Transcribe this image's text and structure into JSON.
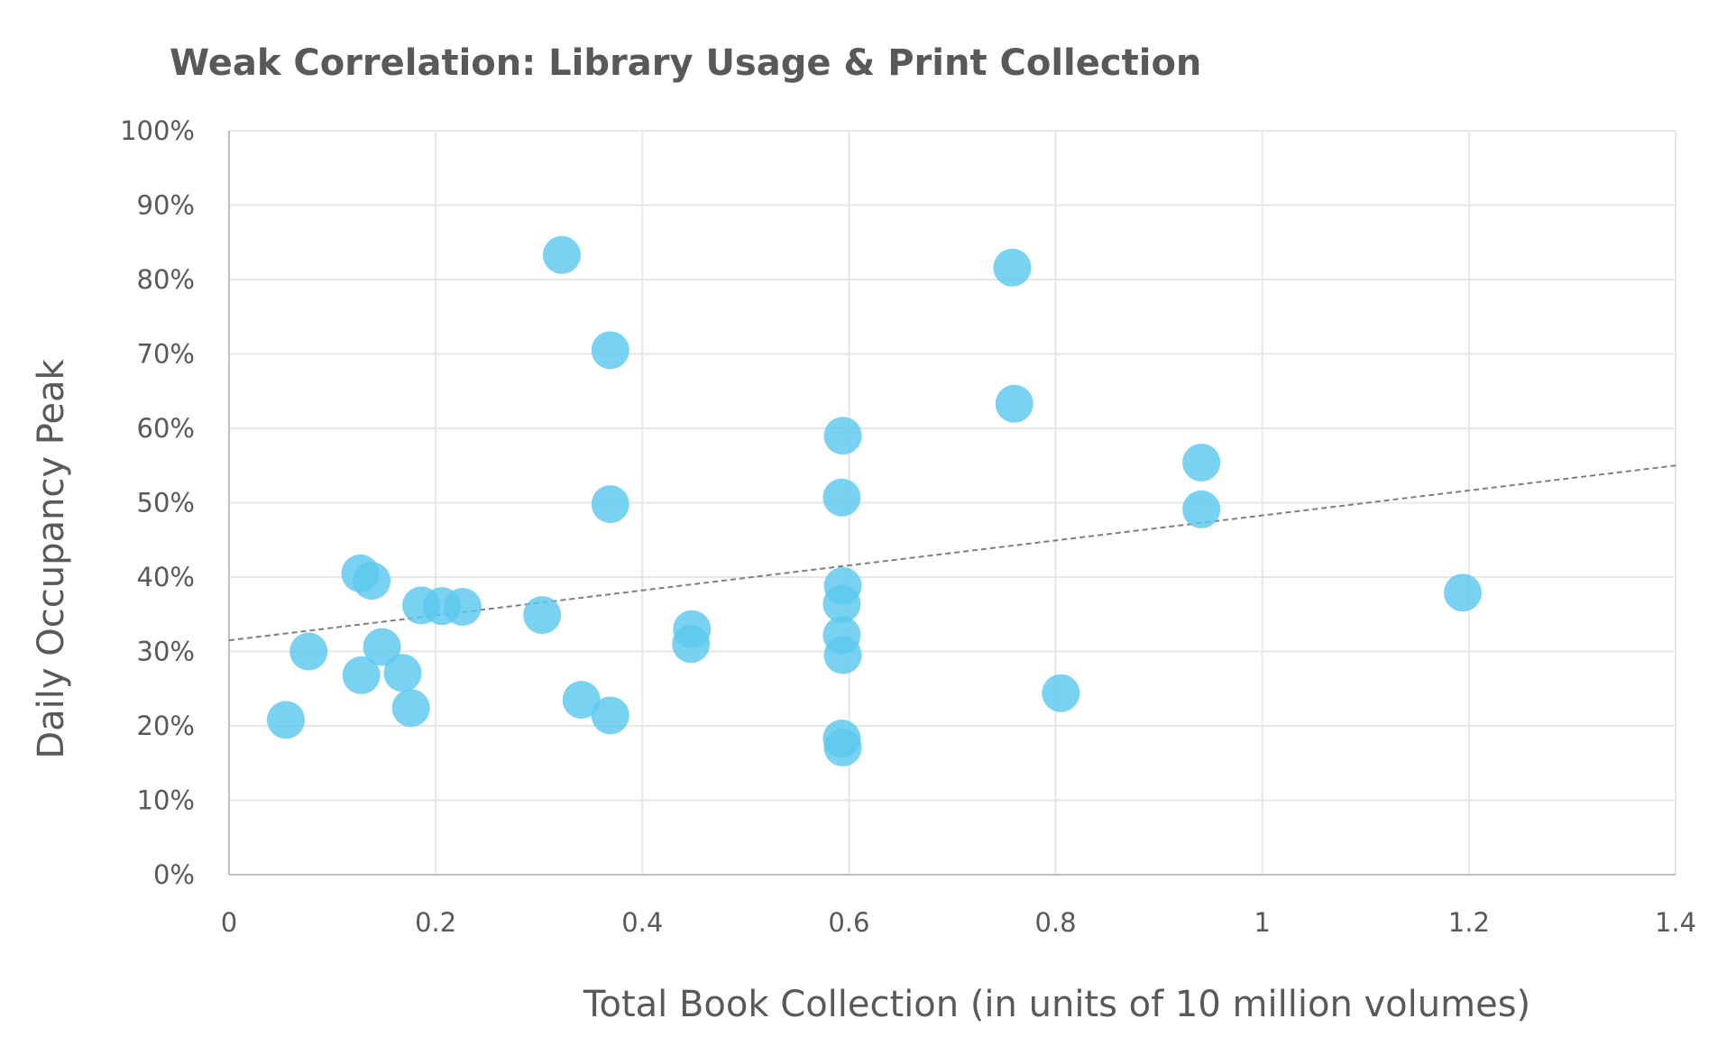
{
  "chart_data": {
    "type": "scatter",
    "title": "Weak Correlation: Library Usage & Print Collection",
    "xlabel": "Total Book Collection (in units of 10 million volumes)",
    "ylabel": "Daily Occupancy Peak",
    "xlim": [
      0,
      1.4
    ],
    "ylim": [
      0,
      100
    ],
    "x_ticks": [
      0,
      0.2,
      0.4,
      0.6,
      0.8,
      1,
      1.2,
      1.4
    ],
    "x_tick_labels": [
      "0",
      "0.2",
      "0.4",
      "0.6",
      "0.8",
      "1",
      "1.2",
      "1.4"
    ],
    "y_ticks": [
      0,
      10,
      20,
      30,
      40,
      50,
      60,
      70,
      80,
      90,
      100
    ],
    "y_tick_labels": [
      "0%",
      "10%",
      "20%",
      "30%",
      "40%",
      "50%",
      "60%",
      "70%",
      "80%",
      "90%",
      "100%"
    ],
    "grid": true,
    "legend": "none",
    "series": [
      {
        "color": "#5BC8EE",
        "points": [
          {
            "x": 0.055,
            "y": 20.8
          },
          {
            "x": 0.077,
            "y": 30.0
          },
          {
            "x": 0.127,
            "y": 40.5
          },
          {
            "x": 0.138,
            "y": 39.5
          },
          {
            "x": 0.128,
            "y": 26.8
          },
          {
            "x": 0.148,
            "y": 30.6
          },
          {
            "x": 0.168,
            "y": 27.1
          },
          {
            "x": 0.176,
            "y": 22.4
          },
          {
            "x": 0.186,
            "y": 36.2
          },
          {
            "x": 0.206,
            "y": 36.1
          },
          {
            "x": 0.226,
            "y": 36.0
          },
          {
            "x": 0.303,
            "y": 34.9
          },
          {
            "x": 0.322,
            "y": 83.3
          },
          {
            "x": 0.341,
            "y": 23.5
          },
          {
            "x": 0.369,
            "y": 70.5
          },
          {
            "x": 0.369,
            "y": 49.8
          },
          {
            "x": 0.369,
            "y": 21.4
          },
          {
            "x": 0.448,
            "y": 33.0
          },
          {
            "x": 0.447,
            "y": 31.0
          },
          {
            "x": 0.594,
            "y": 59.0
          },
          {
            "x": 0.593,
            "y": 50.7
          },
          {
            "x": 0.594,
            "y": 38.8
          },
          {
            "x": 0.593,
            "y": 36.4
          },
          {
            "x": 0.593,
            "y": 32.2
          },
          {
            "x": 0.594,
            "y": 29.5
          },
          {
            "x": 0.593,
            "y": 18.3
          },
          {
            "x": 0.594,
            "y": 17.1
          },
          {
            "x": 0.758,
            "y": 81.6
          },
          {
            "x": 0.76,
            "y": 63.3
          },
          {
            "x": 0.805,
            "y": 24.4
          },
          {
            "x": 0.941,
            "y": 55.4
          },
          {
            "x": 0.941,
            "y": 49.1
          },
          {
            "x": 1.194,
            "y": 37.9
          }
        ]
      }
    ],
    "trendline": {
      "color": "#7F7F7F",
      "style": "dashed",
      "x": [
        0.0,
        1.4
      ],
      "y": [
        31.5,
        55.0
      ]
    }
  }
}
